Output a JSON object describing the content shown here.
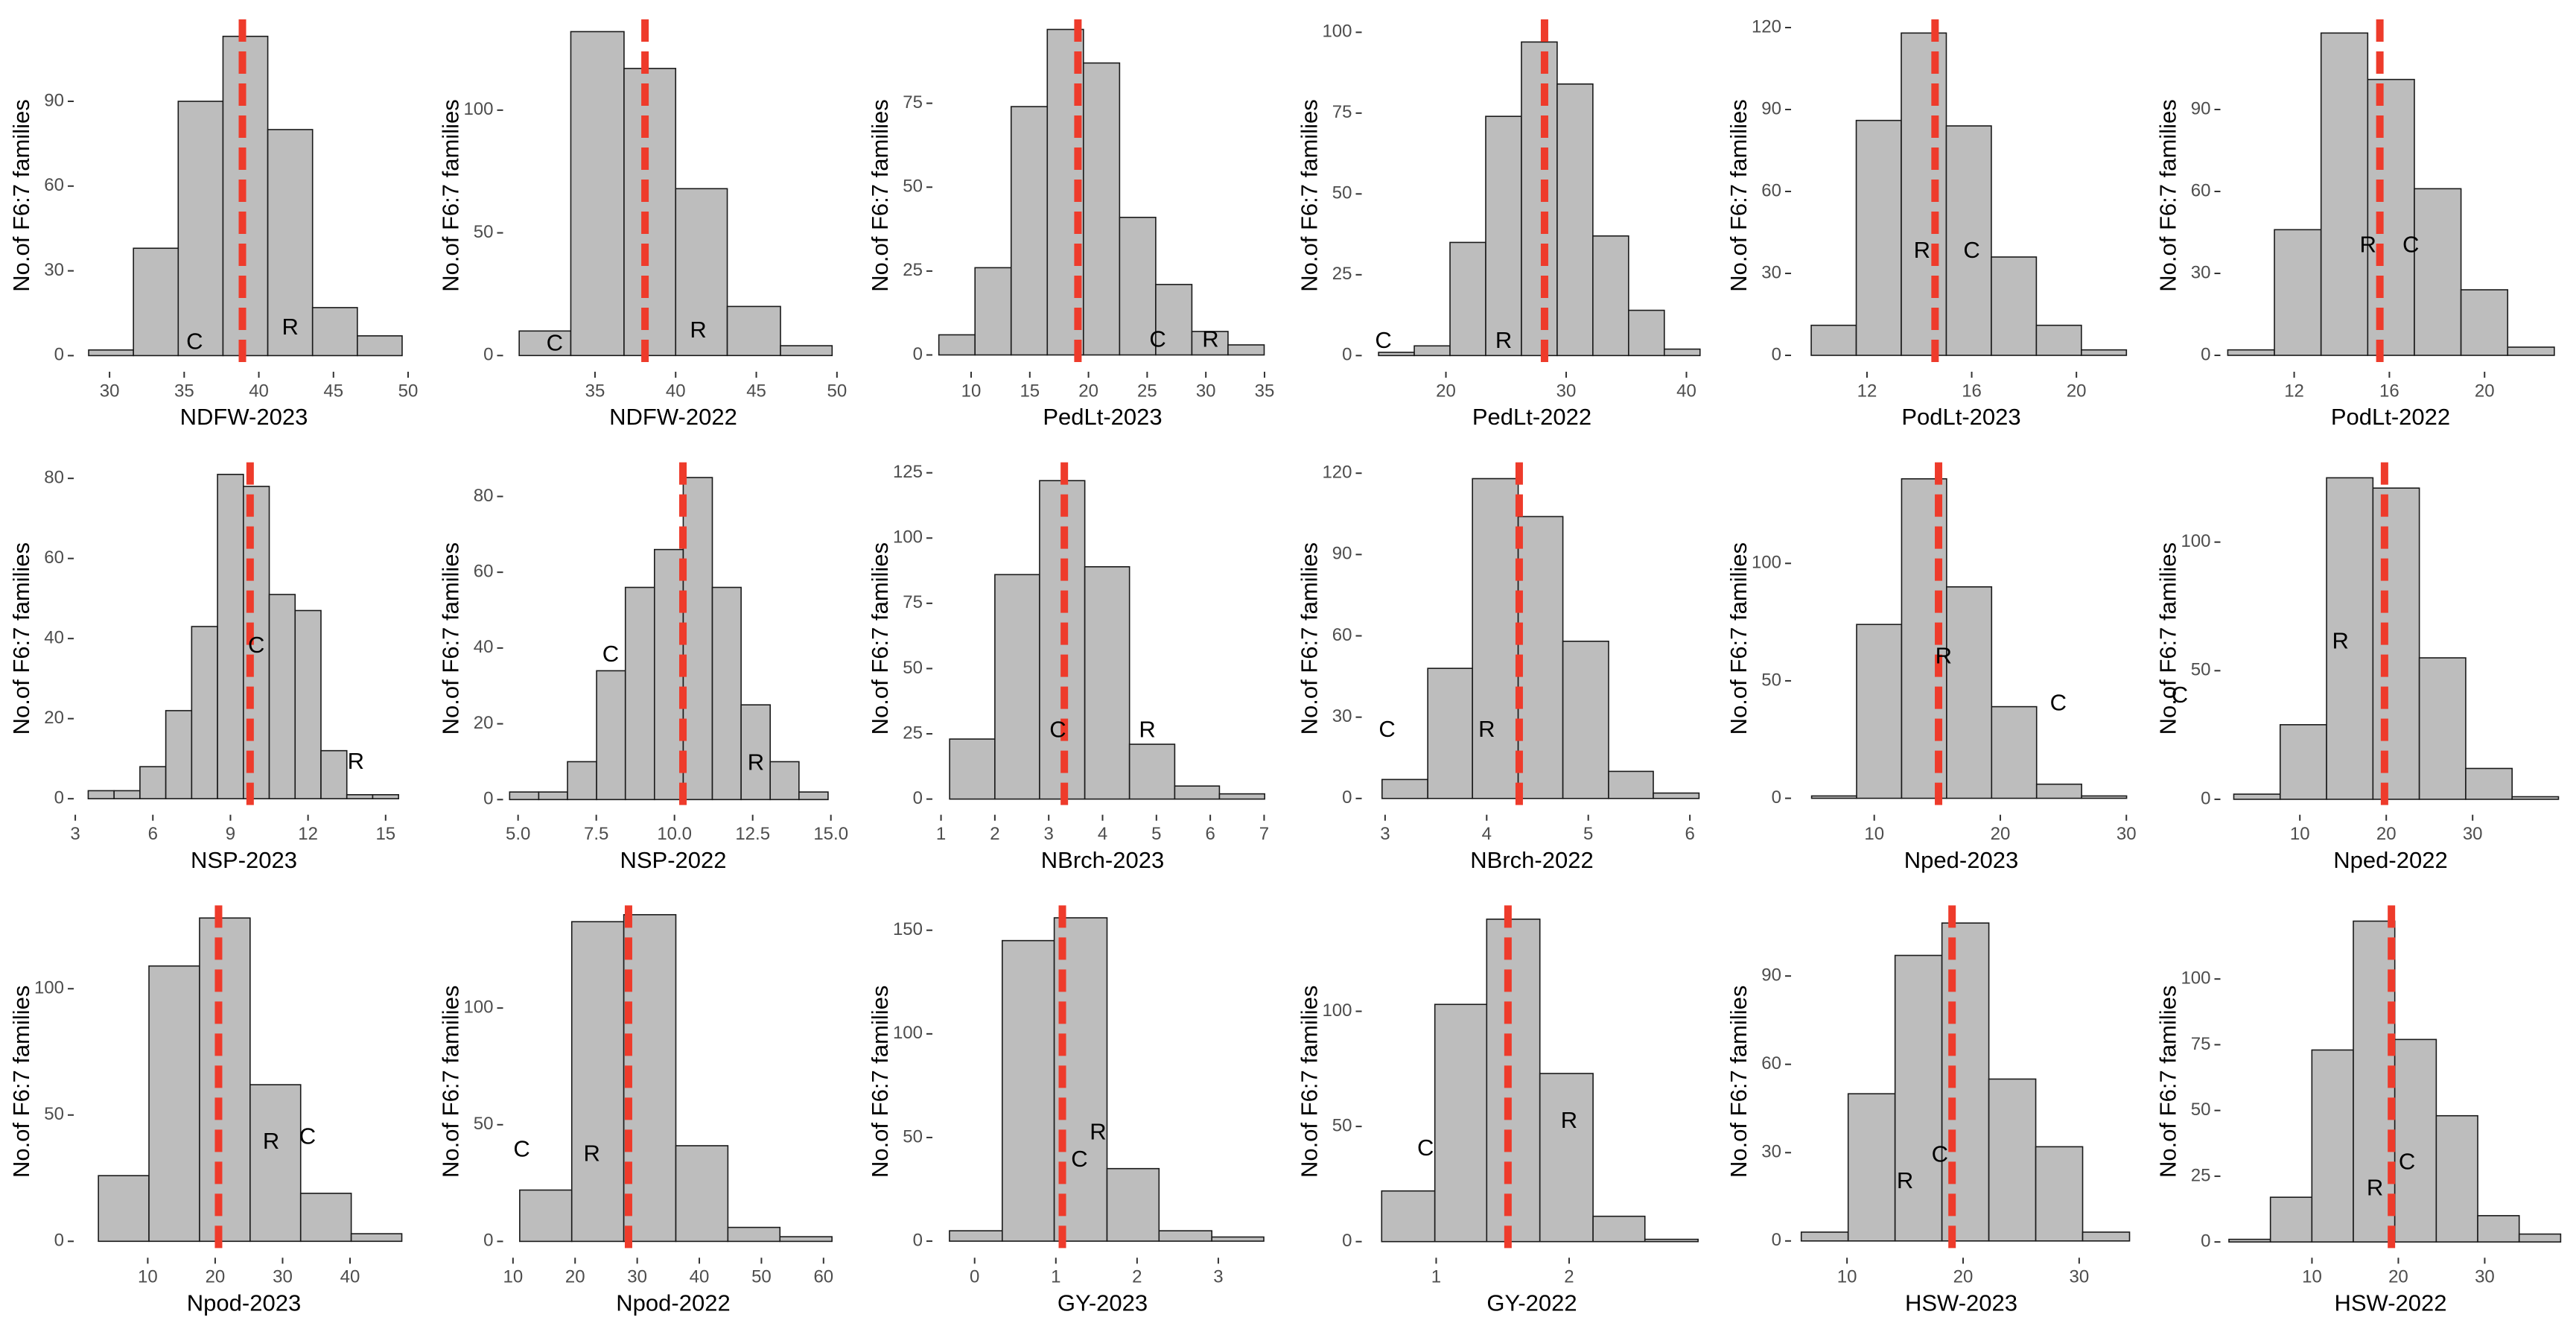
{
  "chart_data": [
    {
      "type": "histogram",
      "xlabel": "NDFW-2023",
      "ylabel": "No.of F6:7 families",
      "bins": [
        28.6,
        31.6,
        34.6,
        37.6,
        40.6,
        43.6,
        46.6,
        49.6
      ],
      "counts": [
        2,
        38,
        90,
        113,
        80,
        17,
        7
      ],
      "mean_line": 38.9,
      "color": "#bdbdbd",
      "mean_color": "#ee3b2b",
      "xlim": [
        27.6,
        50.4
      ],
      "xticks": [
        30,
        35,
        40,
        45,
        50
      ],
      "ylim": [
        -5.7,
        119
      ],
      "yticks": [
        0,
        30,
        60,
        90
      ],
      "annotations": [
        {
          "text": "C",
          "x": 35.7,
          "y": 4.5
        },
        {
          "text": "R",
          "x": 42.1,
          "y": 9.6
        }
      ]
    },
    {
      "type": "histogram",
      "xlabel": "NDFW-2022",
      "ylabel": "No.of F6:7 families",
      "bins": [
        30.3,
        33.5,
        36.8,
        40.0,
        43.2,
        46.5,
        49.7
      ],
      "counts": [
        10,
        132,
        117,
        68,
        20,
        4
      ],
      "mean_line": 38.1,
      "color": "#bdbdbd",
      "mean_color": "#ee3b2b",
      "xlim": [
        29.3,
        50.4
      ],
      "xticks": [
        35,
        40,
        45,
        50
      ],
      "ylim": [
        -6.6,
        137
      ],
      "yticks": [
        0,
        50,
        100
      ],
      "annotations": [
        {
          "text": "C",
          "x": 32.5,
          "y": 4.6
        },
        {
          "text": "R",
          "x": 41.4,
          "y": 9.9
        }
      ]
    },
    {
      "type": "histogram",
      "xlabel": "PedLt-2023",
      "ylabel": "No.of F6:7 families",
      "bins": [
        7.25,
        10.33,
        13.41,
        16.49,
        19.57,
        22.65,
        25.73,
        28.81,
        31.89,
        34.97
      ],
      "counts": [
        6,
        26,
        74,
        97,
        87,
        41,
        21,
        7,
        3
      ],
      "mean_line": 19.1,
      "color": "#bdbdbd",
      "mean_color": "#ee3b2b",
      "xlim": [
        6.7,
        35.7
      ],
      "xticks": [
        10,
        15,
        20,
        25,
        30,
        35
      ],
      "ylim": [
        -5,
        100
      ],
      "yticks": [
        0,
        25,
        50,
        75
      ],
      "annotations": [
        {
          "text": "C",
          "x": 25.9,
          "y": 4.3
        },
        {
          "text": "R",
          "x": 30.4,
          "y": 4.3
        }
      ]
    },
    {
      "type": "histogram",
      "xlabel": "PedLt-2022",
      "ylabel": "No.of F6:7 families",
      "bins": [
        14.4,
        17.37,
        20.34,
        23.31,
        26.28,
        29.25,
        32.22,
        35.19,
        38.16,
        41.13
      ],
      "counts": [
        1,
        3,
        35,
        74,
        97,
        84,
        37,
        14,
        2
      ],
      "mean_line": 28.2,
      "color": "#bdbdbd",
      "mean_color": "#ee3b2b",
      "xlim": [
        13.0,
        41.3
      ],
      "xticks": [
        20,
        30,
        40
      ],
      "ylim": [
        -5,
        104
      ],
      "yticks": [
        0,
        25,
        50,
        75,
        100
      ],
      "annotations": [
        {
          "text": "C",
          "x": 14.8,
          "y": 4.3
        },
        {
          "text": "R",
          "x": 24.8,
          "y": 4.3
        }
      ]
    },
    {
      "type": "histogram",
      "xlabel": "PodLt-2023",
      "ylabel": "No.of F6:7 families",
      "bins": [
        9.87,
        11.59,
        13.31,
        15.03,
        16.75,
        18.47,
        20.19,
        21.91
      ],
      "counts": [
        11,
        86,
        118,
        84,
        36,
        11,
        2
      ],
      "mean_line": 14.6,
      "color": "#bdbdbd",
      "mean_color": "#ee3b2b",
      "xlim": [
        9.1,
        22.1
      ],
      "xticks": [
        12,
        16,
        20
      ],
      "ylim": [
        -6,
        123
      ],
      "yticks": [
        0,
        30,
        60,
        90,
        120
      ],
      "annotations": [
        {
          "text": "R",
          "x": 14.1,
          "y": 38
        },
        {
          "text": "C",
          "x": 16.0,
          "y": 38
        }
      ]
    },
    {
      "type": "histogram",
      "xlabel": "PodLt-2022",
      "ylabel": "No.of F6:7 families",
      "bins": [
        9.21,
        11.17,
        13.13,
        15.09,
        17.05,
        19.01,
        20.97,
        22.93
      ],
      "counts": [
        2,
        46,
        118,
        101,
        61,
        24,
        3
      ],
      "mean_line": 15.6,
      "color": "#bdbdbd",
      "mean_color": "#ee3b2b",
      "xlim": [
        8.9,
        23.2
      ],
      "xticks": [
        12,
        16,
        20
      ],
      "ylim": [
        -6,
        123
      ],
      "yticks": [
        0,
        30,
        60,
        90
      ],
      "annotations": [
        {
          "text": "R",
          "x": 15.1,
          "y": 40
        },
        {
          "text": "C",
          "x": 16.9,
          "y": 40
        }
      ]
    },
    {
      "type": "histogram",
      "xlabel": "NSP-2023",
      "ylabel": "No.of F6:7 families",
      "bins": [
        3.5,
        4.5,
        5.5,
        6.5,
        7.5,
        8.5,
        9.5,
        10.5,
        11.5,
        12.5,
        13.5,
        14.5,
        15.5
      ],
      "counts": [
        2,
        2,
        8,
        22,
        43,
        81,
        78,
        51,
        47,
        12,
        1,
        1
      ],
      "mean_line": 9.76,
      "color": "#bdbdbd",
      "mean_color": "#ee3b2b",
      "xlim": [
        2.94,
        16.1
      ],
      "xticks": [
        3,
        6,
        9,
        12,
        15
      ],
      "ylim": [
        -4,
        84
      ],
      "yticks": [
        0,
        20,
        40,
        60,
        80
      ],
      "annotations": [
        {
          "text": "C",
          "x": 10.0,
          "y": 38
        },
        {
          "text": "R",
          "x": 13.85,
          "y": 9
        }
      ]
    },
    {
      "type": "histogram",
      "xlabel": "NSP-2022",
      "ylabel": "No.of F6:7 families",
      "bins": [
        4.73,
        5.66,
        6.58,
        7.51,
        8.43,
        9.36,
        10.28,
        11.21,
        12.13,
        13.06,
        13.98,
        14.91
      ],
      "counts": [
        2,
        2,
        10,
        34,
        56,
        66,
        85,
        56,
        25,
        10,
        2
      ],
      "mean_line": 10.27,
      "color": "#bdbdbd",
      "mean_color": "#ee3b2b",
      "xlim": [
        4.52,
        15.4
      ],
      "xticks": [
        {
          "value": 5,
          "label": "5.0"
        },
        {
          "value": 7.5,
          "label": "7.5"
        },
        {
          "value": 10,
          "label": "10.0"
        },
        {
          "value": 12.5,
          "label": "12.5"
        },
        {
          "value": 15,
          "label": "15.0"
        }
      ],
      "ylim": [
        -4,
        89
      ],
      "yticks": [
        0,
        20,
        40,
        60,
        80
      ],
      "annotations": [
        {
          "text": "C",
          "x": 7.96,
          "y": 38
        },
        {
          "text": "R",
          "x": 12.6,
          "y": 9.4
        }
      ]
    },
    {
      "type": "histogram",
      "xlabel": "NBrch-2023",
      "ylabel": "No.of F6:7 families",
      "bins": [
        1.16,
        2.0,
        2.83,
        3.67,
        4.5,
        5.34,
        6.17,
        7.01
      ],
      "counts": [
        23,
        86,
        122,
        89,
        21,
        5,
        2
      ],
      "mean_line": 3.29,
      "color": "#bdbdbd",
      "mean_color": "#ee3b2b",
      "xlim": [
        0.84,
        7.16
      ],
      "xticks": [
        1,
        2,
        3,
        4,
        5,
        6,
        7
      ],
      "ylim": [
        -6,
        129
      ],
      "yticks": [
        0,
        25,
        50,
        75,
        100,
        125
      ],
      "annotations": [
        {
          "text": "C",
          "x": 3.17,
          "y": 26
        },
        {
          "text": "R",
          "x": 4.83,
          "y": 26
        }
      ]
    },
    {
      "type": "histogram",
      "xlabel": "NBrch-2022",
      "ylabel": "No.of F6:7 families",
      "bins": [
        2.97,
        3.42,
        3.86,
        4.31,
        4.75,
        5.2,
        5.64,
        6.09
      ],
      "counts": [
        7,
        48,
        118,
        104,
        58,
        10,
        2
      ],
      "mean_line": 4.32,
      "color": "#bdbdbd",
      "mean_color": "#ee3b2b",
      "xlim": [
        2.77,
        6.12
      ],
      "xticks": [
        3,
        4,
        5,
        6
      ],
      "ylim": [
        -6,
        124
      ],
      "yticks": [
        0,
        30,
        60,
        90,
        120
      ],
      "annotations": [
        {
          "text": "C",
          "x": 3.02,
          "y": 25
        },
        {
          "text": "R",
          "x": 4.0,
          "y": 25
        }
      ]
    },
    {
      "type": "histogram",
      "xlabel": "Nped-2023",
      "ylabel": "No.of F6:7 families",
      "bins": [
        5.03,
        8.6,
        12.17,
        15.74,
        19.31,
        22.88,
        26.45,
        30.02
      ],
      "counts": [
        1,
        74,
        136,
        90,
        39,
        6,
        1
      ],
      "mean_line": 15.1,
      "color": "#bdbdbd",
      "mean_color": "#ee3b2b",
      "xlim": [
        3.4,
        30.4
      ],
      "xticks": [
        10,
        20,
        30
      ],
      "ylim": [
        -7,
        143
      ],
      "yticks": [
        0,
        50,
        100
      ],
      "annotations": [
        {
          "text": "R",
          "x": 15.5,
          "y": 60
        },
        {
          "text": "C",
          "x": 24.6,
          "y": 40
        }
      ]
    },
    {
      "type": "histogram",
      "xlabel": "Nped-2022",
      "ylabel": "No.of F6:7 families",
      "bins": [
        2.35,
        7.72,
        13.09,
        18.46,
        23.83,
        29.2,
        34.57,
        39.94
      ],
      "counts": [
        2,
        29,
        125,
        121,
        55,
        12,
        1
      ],
      "mean_line": 19.8,
      "color": "#bdbdbd",
      "mean_color": "#ee3b2b",
      "xlim": [
        0.8,
        40.2
      ],
      "xticks": [
        10,
        20,
        30
      ],
      "ylim": [
        -6,
        131
      ],
      "yticks": [
        0,
        50,
        100
      ],
      "annotations": [
        {
          "text": "C",
          "x": -3.9,
          "y": 40
        },
        {
          "text": "R",
          "x": 14.7,
          "y": 61
        }
      ]
    },
    {
      "type": "histogram",
      "xlabel": "Npod-2023",
      "ylabel": "No.of F6:7 families",
      "bins": [
        2.68,
        10.18,
        17.68,
        25.18,
        32.68,
        40.18,
        47.68
      ],
      "counts": [
        26,
        109,
        128,
        62,
        19,
        3
      ],
      "mean_line": 20.5,
      "color": "#bdbdbd",
      "mean_color": "#ee3b2b",
      "xlim": [
        -0.98,
        49.5
      ],
      "xticks": [
        10,
        20,
        30,
        40
      ],
      "ylim": [
        -6.5,
        133
      ],
      "yticks": [
        0,
        50,
        100
      ],
      "annotations": [
        {
          "text": "R",
          "x": 28.3,
          "y": 39
        },
        {
          "text": "C",
          "x": 33.7,
          "y": 41
        }
      ]
    },
    {
      "type": "histogram",
      "xlabel": "Npod-2022",
      "ylabel": "No.of F6:7 families",
      "bins": [
        11.08,
        19.46,
        27.84,
        36.22,
        44.6,
        52.98,
        61.36
      ],
      "counts": [
        22,
        137,
        140,
        41,
        6,
        2
      ],
      "mean_line": 28.6,
      "color": "#bdbdbd",
      "mean_color": "#ee3b2b",
      "xlim": [
        8.4,
        63.2
      ],
      "xticks": [
        10,
        20,
        30,
        40,
        50,
        60
      ],
      "ylim": [
        -7,
        144
      ],
      "yticks": [
        0,
        50,
        100
      ],
      "annotations": [
        {
          "text": "C",
          "x": 11.4,
          "y": 39
        },
        {
          "text": "R",
          "x": 22.7,
          "y": 37
        }
      ]
    },
    {
      "type": "histogram",
      "xlabel": "GY-2023",
      "ylabel": "No.of F6:7 families",
      "bins": [
        -0.31,
        0.34,
        0.98,
        1.63,
        2.27,
        2.92,
        3.56
      ],
      "counts": [
        5,
        145,
        156,
        35,
        5,
        2
      ],
      "mean_line": 1.08,
      "color": "#bdbdbd",
      "mean_color": "#ee3b2b",
      "xlim": [
        -0.52,
        3.67
      ],
      "xticks": [
        0,
        1,
        2,
        3
      ],
      "ylim": [
        -8,
        162
      ],
      "yticks": [
        0,
        50,
        100,
        150
      ],
      "annotations": [
        {
          "text": "C",
          "x": 1.29,
          "y": 39
        },
        {
          "text": "R",
          "x": 1.52,
          "y": 52
        }
      ]
    },
    {
      "type": "histogram",
      "xlabel": "GY-2022",
      "ylabel": "No.of F6:7 families",
      "bins": [
        0.59,
        0.99,
        1.38,
        1.78,
        2.18,
        2.57,
        2.97
      ],
      "counts": [
        22,
        103,
        140,
        73,
        11,
        1
      ],
      "mean_line": 1.54,
      "color": "#bdbdbd",
      "mean_color": "#ee3b2b",
      "xlim": [
        0.44,
        3.0
      ],
      "xticks": [
        1,
        2
      ],
      "ylim": [
        -7,
        146
      ],
      "yticks": [
        0,
        50,
        100
      ],
      "annotations": [
        {
          "text": "C",
          "x": 0.92,
          "y": 40
        },
        {
          "text": "R",
          "x": 2.0,
          "y": 52
        }
      ]
    },
    {
      "type": "histogram",
      "xlabel": "HSW-2023",
      "ylabel": "No.of F6:7 families",
      "bins": [
        6.06,
        10.1,
        14.14,
        18.18,
        22.22,
        26.26,
        30.3,
        34.34
      ],
      "counts": [
        3,
        50,
        97,
        108,
        55,
        32,
        3
      ],
      "mean_line": 19.05,
      "color": "#bdbdbd",
      "mean_color": "#ee3b2b",
      "xlim": [
        5.18,
        34.5
      ],
      "xticks": [
        10,
        20,
        30
      ],
      "ylim": [
        -5.7,
        114
      ],
      "yticks": [
        0,
        30,
        60,
        90
      ],
      "annotations": [
        {
          "text": "R",
          "x": 15.0,
          "y": 20
        },
        {
          "text": "C",
          "x": 18.0,
          "y": 29
        }
      ]
    },
    {
      "type": "histogram",
      "xlabel": "HSW-2022",
      "ylabel": "No.of F6:7 families",
      "bins": [
        0.39,
        5.19,
        9.99,
        14.79,
        19.59,
        24.39,
        29.19,
        33.99,
        38.79
      ],
      "counts": [
        1,
        17,
        73,
        122,
        77,
        48,
        10,
        3
      ],
      "mean_line": 19.2,
      "color": "#bdbdbd",
      "mean_color": "#ee3b2b",
      "xlim": [
        -0.6,
        38.8
      ],
      "xticks": [
        10,
        20,
        30
      ],
      "ylim": [
        -6,
        128
      ],
      "yticks": [
        0,
        25,
        50,
        75,
        100
      ],
      "annotations": [
        {
          "text": "R",
          "x": 17.3,
          "y": 20
        },
        {
          "text": "C",
          "x": 21.0,
          "y": 30
        }
      ]
    }
  ]
}
